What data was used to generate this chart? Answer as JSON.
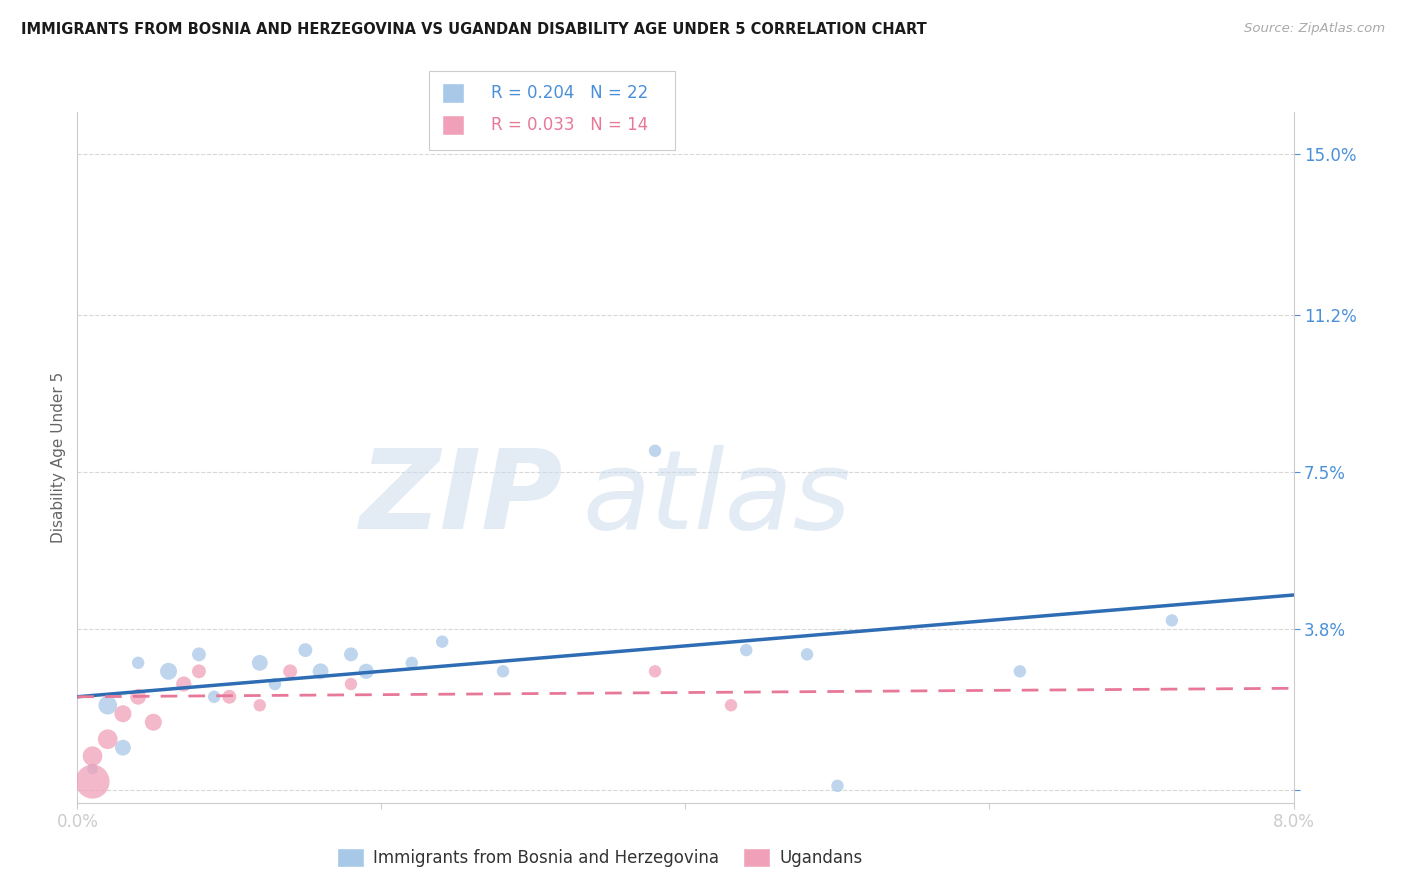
{
  "title": "IMMIGRANTS FROM BOSNIA AND HERZEGOVINA VS UGANDAN DISABILITY AGE UNDER 5 CORRELATION CHART",
  "source": "Source: ZipAtlas.com",
  "ylabel": "Disability Age Under 5",
  "xmin": 0.0,
  "xmax": 0.08,
  "ymin": -0.003,
  "ymax": 0.16,
  "ytick_vals": [
    0.0,
    0.038,
    0.075,
    0.112,
    0.15
  ],
  "ytick_labels": [
    "",
    "3.8%",
    "7.5%",
    "11.2%",
    "15.0%"
  ],
  "xtick_vals": [
    0.0,
    0.02,
    0.04,
    0.06,
    0.08
  ],
  "xtick_labels": [
    "0.0%",
    "",
    "",
    "",
    "8.0%"
  ],
  "blue_color": "#a8c8e8",
  "pink_color": "#f0a0b8",
  "blue_line_color": "#2e6db4",
  "pink_line_color": "#e87898",
  "legend_R_blue": "R = 0.204",
  "legend_N_blue": "N = 22",
  "legend_R_pink": "R = 0.033",
  "legend_N_pink": "N = 14",
  "legend_label_blue": "Immigrants from Bosnia and Herzegovina",
  "legend_label_pink": "Ugandans",
  "blue_x": [
    0.001,
    0.002,
    0.003,
    0.004,
    0.006,
    0.008,
    0.009,
    0.012,
    0.013,
    0.015,
    0.016,
    0.018,
    0.019,
    0.022,
    0.024,
    0.028,
    0.038,
    0.044,
    0.048,
    0.05,
    0.062,
    0.072
  ],
  "blue_y": [
    0.005,
    0.02,
    0.01,
    0.03,
    0.028,
    0.032,
    0.022,
    0.03,
    0.025,
    0.033,
    0.028,
    0.032,
    0.028,
    0.03,
    0.035,
    0.028,
    0.08,
    0.033,
    0.032,
    0.001,
    0.028,
    0.04
  ],
  "blue_size": [
    60,
    180,
    130,
    80,
    150,
    100,
    80,
    130,
    80,
    100,
    130,
    100,
    120,
    80,
    80,
    80,
    80,
    80,
    80,
    80,
    80,
    80
  ],
  "pink_x": [
    0.001,
    0.001,
    0.002,
    0.003,
    0.004,
    0.005,
    0.007,
    0.008,
    0.01,
    0.012,
    0.014,
    0.018,
    0.038,
    0.043
  ],
  "pink_y": [
    0.002,
    0.008,
    0.012,
    0.018,
    0.022,
    0.016,
    0.025,
    0.028,
    0.022,
    0.02,
    0.028,
    0.025,
    0.028,
    0.02
  ],
  "pink_size": [
    600,
    200,
    200,
    150,
    130,
    150,
    120,
    100,
    100,
    80,
    100,
    80,
    80,
    80
  ],
  "blue_trendline_x": [
    0.0,
    0.08
  ],
  "blue_trendline_y": [
    0.022,
    0.046
  ],
  "pink_trendline_x": [
    0.0,
    0.08
  ],
  "pink_trendline_y": [
    0.022,
    0.024
  ],
  "grid_color": "#d8d8d8",
  "bg_color": "#ffffff",
  "title_color": "#1a1a1a",
  "right_tick_color": "#4a90d9",
  "bottom_tick_color": "#4a90d9",
  "axis_label_color": "#666666"
}
